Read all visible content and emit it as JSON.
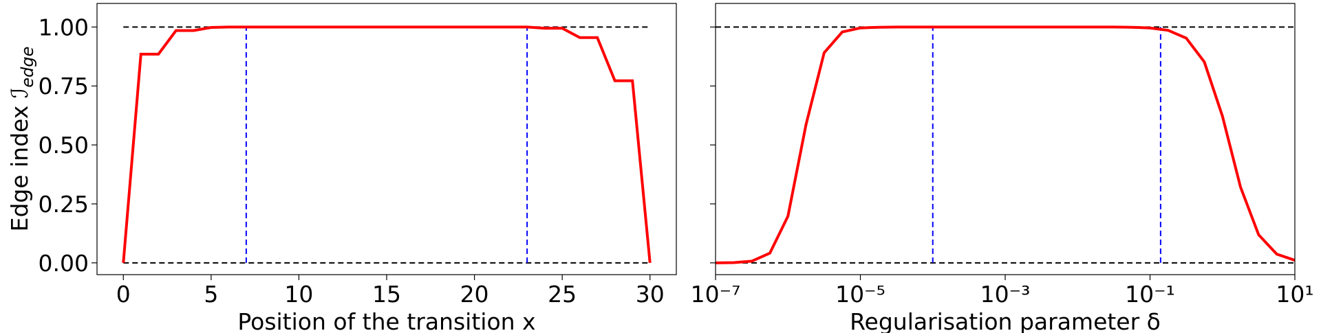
{
  "chart_data": [
    {
      "type": "line",
      "xscale": "linear",
      "x": [
        0,
        1,
        2,
        3,
        4,
        5,
        6,
        7,
        8,
        9,
        10,
        11,
        12,
        13,
        14,
        15,
        16,
        17,
        18,
        19,
        20,
        21,
        22,
        23,
        24,
        25,
        26,
        27,
        28,
        29,
        30
      ],
      "series": [
        {
          "color": "#ff0000",
          "values": [
            0,
            0.885,
            0.885,
            0.985,
            0.985,
            0.998,
            1,
            1,
            1,
            1,
            1,
            1,
            1,
            1,
            1,
            1,
            1,
            1,
            1,
            1,
            1,
            1,
            1,
            1,
            0.995,
            0.995,
            0.955,
            0.955,
            0.772,
            0.772,
            0
          ]
        }
      ],
      "xlim": [
        -1.5,
        31.5
      ],
      "ylim": [
        -0.05,
        1.1
      ],
      "xticks": [
        0,
        5,
        10,
        15,
        20,
        25,
        30
      ],
      "yticks": [
        {
          "value": 0,
          "label": "0.00"
        },
        {
          "value": 0.25,
          "label": "0.25"
        },
        {
          "value": 0.5,
          "label": "0.50"
        },
        {
          "value": 0.75,
          "label": "0.75"
        },
        {
          "value": 1,
          "label": "1.00"
        }
      ],
      "hlines": [
        0,
        1
      ],
      "hline_color": "#000000",
      "vlines": [
        7,
        23
      ],
      "vline_color": "#0000ff",
      "xlabel": "Position of the transition x",
      "ylabel": "Edge index ",
      "ylabel_symbol": "ℐ",
      "ylabel_subscript": "edge"
    },
    {
      "type": "line",
      "xscale": "log",
      "x": [
        1e-07,
        1.778e-07,
        3.162e-07,
        5.623e-07,
        1e-06,
        1.778e-06,
        3.162e-06,
        5.623e-06,
        1e-05,
        1.778e-05,
        3.162e-05,
        5.623e-05,
        0.0001,
        0.0001778,
        0.0003162,
        0.0005623,
        0.001,
        0.001778,
        0.003162,
        0.005623,
        0.01,
        0.01778,
        0.03162,
        0.05623,
        0.1,
        0.1778,
        0.3162,
        0.5623,
        1,
        1.778,
        3.162,
        5.623,
        10
      ],
      "series": [
        {
          "color": "#ff0000",
          "values": [
            0,
            0.001,
            0.007,
            0.041,
            0.198,
            0.587,
            0.891,
            0.979,
            0.996,
            0.999,
            1,
            1,
            1,
            1,
            1,
            1,
            1,
            1,
            1,
            1,
            1,
            1,
            1,
            0.999,
            0.996,
            0.986,
            0.953,
            0.852,
            0.622,
            0.321,
            0.119,
            0.037,
            0.011
          ]
        }
      ],
      "xlim": [
        1e-07,
        10
      ],
      "ylim": [
        -0.05,
        1.1
      ],
      "xticks": [
        {
          "value": 1e-07,
          "label": "10⁻⁷"
        },
        {
          "value": 1e-05,
          "label": "10⁻⁵"
        },
        {
          "value": 0.001,
          "label": "10⁻³"
        },
        {
          "value": 0.1,
          "label": "10⁻¹"
        },
        {
          "value": 10,
          "label": "10¹"
        }
      ],
      "hlines": [
        0,
        1
      ],
      "hline_color": "#000000",
      "vlines": [
        0.0001,
        0.14
      ],
      "vline_color": "#0000ff",
      "xlabel": "Regularisation parameter δ"
    }
  ]
}
